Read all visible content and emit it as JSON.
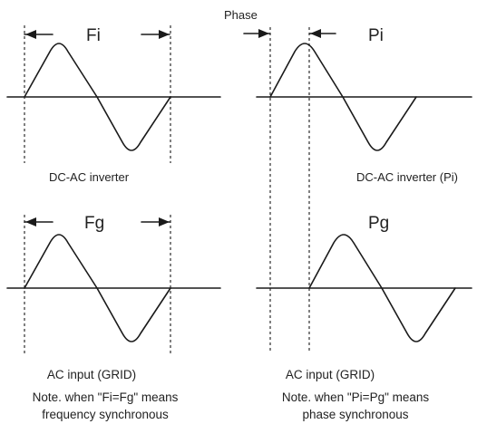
{
  "labels": {
    "fi": "Fi",
    "pi": "Pi",
    "fg": "Fg",
    "pg": "Pg",
    "phase": "Phase",
    "dc_ac_inverter": "DC-AC inverter",
    "dc_ac_inverter_pi": "DC-AC inverter (Pi)",
    "ac_input_left": "AC input (GRID)",
    "ac_input_right": "AC input (GRID)"
  },
  "notes": {
    "left_line1": "Note. when \"Fi=Fg\" means",
    "left_line2": "frequency synchronous",
    "right_line1": "Note. when \"Pi=Pg\" means",
    "right_line2": "phase synchronous"
  },
  "colors": {
    "ink": "#1a1a1a",
    "background": "#ffffff"
  }
}
